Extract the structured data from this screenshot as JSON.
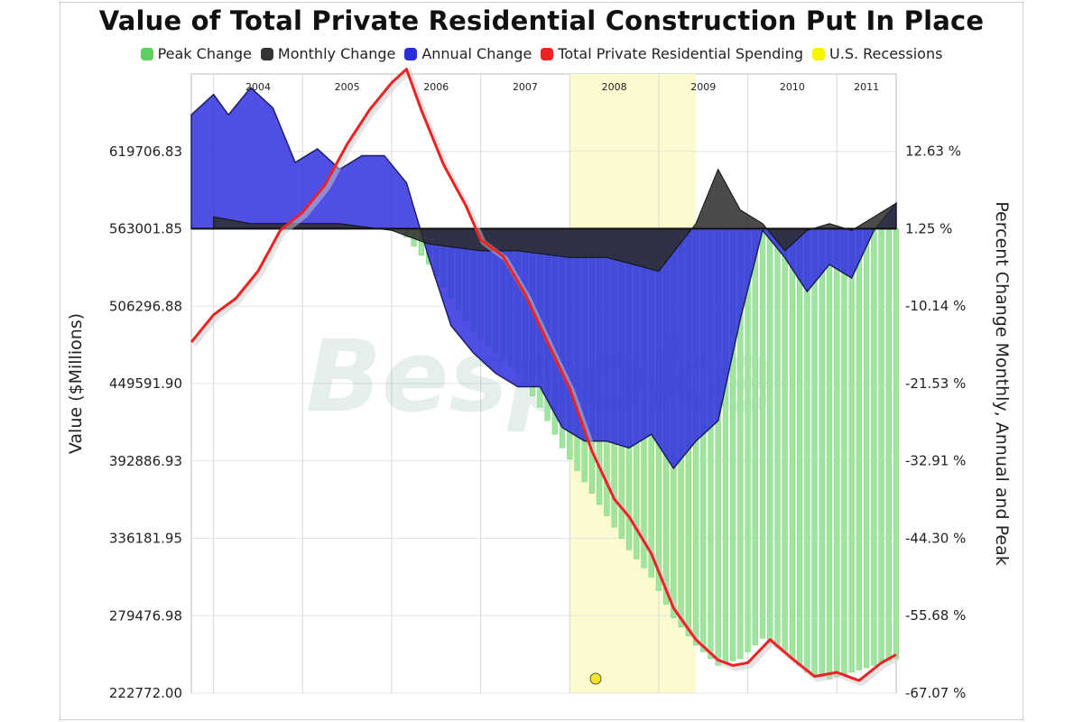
{
  "chart_data": {
    "type": "area",
    "title": "Value of Total Private Residential Construction Put In Place",
    "legend": [
      {
        "label": "Peak Change",
        "color": "#5fcf5f"
      },
      {
        "label": "Monthly Change",
        "color": "#333333"
      },
      {
        "label": "Annual Change",
        "color": "#2b2bdc"
      },
      {
        "label": "Total Private Residential Spending",
        "color": "#ee2222"
      },
      {
        "label": "U.S. Recessions",
        "color": "#f5f500"
      }
    ],
    "ylabel_left": "Value ($Millions)",
    "ylabel_right": "Percent Change Monthly, Annual and Peak",
    "left_ticks": [
      "619706.83",
      "563001.85",
      "506296.88",
      "449591.90",
      "392886.93",
      "336181.95",
      "279476.98",
      "222772.00"
    ],
    "left_tick_values": [
      619706.83,
      563001.85,
      506296.88,
      449591.9,
      392886.93,
      336181.95,
      279476.98,
      222772.0
    ],
    "right_ticks": [
      "12.63 %",
      "1.25 %",
      "-10.14 %",
      "-21.53 %",
      "-32.91 %",
      "-44.30 %",
      "-55.68 %",
      "-67.07 %"
    ],
    "right_tick_values": [
      12.63,
      1.25,
      -10.14,
      -21.53,
      -32.91,
      -44.3,
      -55.68,
      -67.07
    ],
    "left_ylim": [
      222772.0,
      676411.8
    ],
    "right_ylim": [
      -67.07,
      24.01
    ],
    "x_range": [
      "2003-10",
      "2011-09"
    ],
    "years": [
      "2004",
      "2005",
      "2006",
      "2007",
      "2008",
      "2009",
      "2010",
      "2011"
    ],
    "recession": {
      "start": "2008-01",
      "end": "2009-06"
    },
    "watermark": "Bespoke",
    "series": [
      {
        "name": "Total Private Residential Spending",
        "color": "#ee2222",
        "axis": "left",
        "points": [
          [
            "2003-10",
            480000
          ],
          [
            "2004-01",
            500000
          ],
          [
            "2004-04",
            512000
          ],
          [
            "2004-07",
            532000
          ],
          [
            "2004-10",
            562000
          ],
          [
            "2005-01",
            575000
          ],
          [
            "2005-04",
            595000
          ],
          [
            "2005-07",
            625000
          ],
          [
            "2005-10",
            650000
          ],
          [
            "2006-01",
            670000
          ],
          [
            "2006-03",
            680000
          ],
          [
            "2006-05",
            650000
          ],
          [
            "2006-08",
            610000
          ],
          [
            "2006-11",
            580000
          ],
          [
            "2007-01",
            555000
          ],
          [
            "2007-04",
            543000
          ],
          [
            "2007-07",
            515000
          ],
          [
            "2007-10",
            480000
          ],
          [
            "2008-01",
            446000
          ],
          [
            "2008-04",
            400000
          ],
          [
            "2008-07",
            365000
          ],
          [
            "2008-09",
            352000
          ],
          [
            "2008-12",
            325000
          ],
          [
            "2009-03",
            285000
          ],
          [
            "2009-06",
            262000
          ],
          [
            "2009-09",
            247000
          ],
          [
            "2009-11",
            243000
          ],
          [
            "2010-01",
            245000
          ],
          [
            "2010-04",
            262000
          ],
          [
            "2010-07",
            248000
          ],
          [
            "2010-10",
            235000
          ],
          [
            "2011-01",
            238000
          ],
          [
            "2011-04",
            232000
          ],
          [
            "2011-07",
            245000
          ],
          [
            "2011-09",
            251000
          ]
        ]
      },
      {
        "name": "Annual Change",
        "color": "#2b2bdc",
        "axis": "right",
        "points": [
          [
            "2003-10",
            18
          ],
          [
            "2004-01",
            21
          ],
          [
            "2004-03",
            18
          ],
          [
            "2004-06",
            22
          ],
          [
            "2004-09",
            19
          ],
          [
            "2004-12",
            11
          ],
          [
            "2005-03",
            13
          ],
          [
            "2005-06",
            10
          ],
          [
            "2005-09",
            12
          ],
          [
            "2005-12",
            12
          ],
          [
            "2006-03",
            8
          ],
          [
            "2006-06",
            -3
          ],
          [
            "2006-09",
            -13
          ],
          [
            "2006-12",
            -17
          ],
          [
            "2007-03",
            -20
          ],
          [
            "2007-06",
            -22
          ],
          [
            "2007-09",
            -22
          ],
          [
            "2007-12",
            -28
          ],
          [
            "2008-03",
            -30
          ],
          [
            "2008-06",
            -30
          ],
          [
            "2008-09",
            -31
          ],
          [
            "2008-12",
            -29
          ],
          [
            "2009-03",
            -34
          ],
          [
            "2009-06",
            -30
          ],
          [
            "2009-09",
            -27
          ],
          [
            "2009-12",
            -12
          ],
          [
            "2010-03",
            1
          ],
          [
            "2010-06",
            -3
          ],
          [
            "2010-09",
            -8
          ],
          [
            "2010-12",
            -4
          ],
          [
            "2011-03",
            -6
          ],
          [
            "2011-06",
            1
          ],
          [
            "2011-09",
            5
          ]
        ]
      },
      {
        "name": "Monthly Change",
        "color": "#333333",
        "axis": "right",
        "points": [
          [
            "2004-01",
            3
          ],
          [
            "2004-06",
            2
          ],
          [
            "2005-01",
            2
          ],
          [
            "2005-06",
            2
          ],
          [
            "2006-01",
            1
          ],
          [
            "2006-06",
            -1
          ],
          [
            "2007-01",
            -2
          ],
          [
            "2007-06",
            -2
          ],
          [
            "2008-01",
            -3
          ],
          [
            "2008-06",
            -3
          ],
          [
            "2009-01",
            -5
          ],
          [
            "2009-06",
            2
          ],
          [
            "2009-09",
            10
          ],
          [
            "2009-12",
            4
          ],
          [
            "2010-03",
            2
          ],
          [
            "2010-06",
            -2
          ],
          [
            "2010-09",
            1
          ],
          [
            "2010-12",
            2
          ],
          [
            "2011-03",
            1
          ],
          [
            "2011-06",
            3
          ],
          [
            "2011-09",
            5
          ]
        ]
      },
      {
        "name": "Peak Change",
        "color": "#5fcf5f",
        "axis": "right",
        "points": [
          [
            "2006-03",
            0
          ],
          [
            "2006-06",
            -4
          ],
          [
            "2006-09",
            -9
          ],
          [
            "2006-12",
            -14
          ],
          [
            "2007-03",
            -17
          ],
          [
            "2007-06",
            -20
          ],
          [
            "2007-09",
            -25
          ],
          [
            "2007-12",
            -31
          ],
          [
            "2008-03",
            -36
          ],
          [
            "2008-06",
            -41
          ],
          [
            "2008-09",
            -46
          ],
          [
            "2008-12",
            -50
          ],
          [
            "2009-03",
            -56
          ],
          [
            "2009-06",
            -60
          ],
          [
            "2009-09",
            -63
          ],
          [
            "2009-12",
            -62
          ],
          [
            "2010-03",
            -59
          ],
          [
            "2010-06",
            -61
          ],
          [
            "2010-09",
            -64
          ],
          [
            "2010-12",
            -65
          ],
          [
            "2011-03",
            -64
          ],
          [
            "2011-06",
            -63
          ],
          [
            "2011-09",
            -62
          ]
        ]
      }
    ]
  }
}
